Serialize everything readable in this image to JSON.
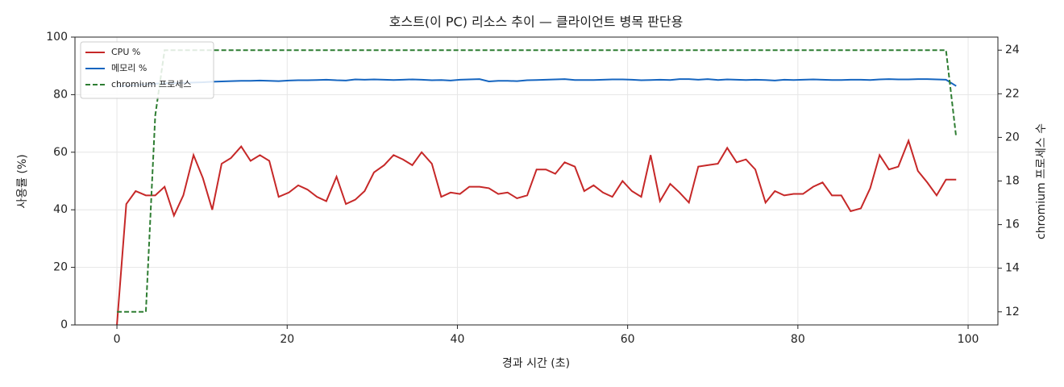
{
  "chart_data": {
    "type": "line",
    "title": "호스트(이 PC) 리소스 추이 — 클라이언트 병목 판단용",
    "x_label": "경과 시간 (초)",
    "y_label": "사용률 (%)",
    "y2_label": "chromium 프로세스 수",
    "x": [
      0,
      1.1,
      2.2,
      3.4,
      4.5,
      5.6,
      6.7,
      7.8,
      9.0,
      10.1,
      11.2,
      12.3,
      13.4,
      14.6,
      15.7,
      16.8,
      17.9,
      19.0,
      20.2,
      21.3,
      22.4,
      23.5,
      24.6,
      25.8,
      26.9,
      28.0,
      29.1,
      30.2,
      31.4,
      32.5,
      33.6,
      34.7,
      35.8,
      37.0,
      38.1,
      39.2,
      40.3,
      41.4,
      42.6,
      43.7,
      44.8,
      45.9,
      47.0,
      48.2,
      49.3,
      50.4,
      51.5,
      52.6,
      53.8,
      54.9,
      56.0,
      57.1,
      58.2,
      59.4,
      60.5,
      61.6,
      62.7,
      63.8,
      65.0,
      66.1,
      67.2,
      68.3,
      69.4,
      70.6,
      71.7,
      72.8,
      73.9,
      75.0,
      76.2,
      77.3,
      78.4,
      79.5,
      80.6,
      81.8,
      82.9,
      84.0,
      85.1,
      86.2,
      87.4,
      88.5,
      89.6,
      90.7,
      91.8,
      93.0,
      94.1,
      95.2,
      96.3,
      97.4,
      98.6
    ],
    "series": [
      {
        "name": "CPU %",
        "color": "#c62828",
        "dash": false,
        "values": [
          0,
          42,
          46.5,
          45,
          45,
          48,
          38,
          45,
          59,
          51,
          40,
          56,
          58,
          62,
          57,
          59,
          57,
          44.5,
          46,
          48.5,
          47,
          44.5,
          43,
          51.5,
          42,
          43.5,
          46.5,
          53,
          55.5,
          59,
          57.5,
          55.5,
          60,
          56,
          44.5,
          46,
          45.5,
          48,
          48,
          47.5,
          45.5,
          46,
          44,
          45,
          54,
          54,
          52.5,
          56.5,
          55,
          46.5,
          48.5,
          46,
          44.5,
          50,
          46.5,
          44.5,
          59,
          43,
          49,
          46,
          42.5,
          55,
          55.5,
          56,
          61.5,
          56.5,
          57.5,
          54,
          42.5,
          46.5,
          45,
          45.5,
          45.5,
          48,
          49.5,
          45,
          45,
          39.5,
          40.5,
          47.5,
          59,
          54,
          55,
          64,
          53.5,
          49.5,
          45,
          50.5,
          50.5
        ]
      },
      {
        "name": "메모리 %",
        "color": "#1565c0",
        "dash": false,
        "values": [
          83,
          83.1,
          83.3,
          83.6,
          83.8,
          84,
          84,
          84.1,
          84.2,
          84.3,
          84.5,
          84.6,
          84.7,
          84.8,
          84.8,
          84.9,
          84.8,
          84.7,
          84.9,
          85,
          85,
          85.1,
          85.2,
          85,
          84.9,
          85.3,
          85.2,
          85.3,
          85.2,
          85.1,
          85.2,
          85.3,
          85.2,
          85,
          85.1,
          84.9,
          85.2,
          85.3,
          85.4,
          84.6,
          84.8,
          84.8,
          84.7,
          85,
          85.1,
          85.2,
          85.3,
          85.4,
          85.1,
          85.1,
          85.1,
          85.2,
          85.3,
          85.3,
          85.2,
          85,
          85.1,
          85.2,
          85.1,
          85.4,
          85.4,
          85.2,
          85.4,
          85.1,
          85.3,
          85.2,
          85.1,
          85.2,
          85.1,
          84.9,
          85.2,
          85.1,
          85.2,
          85.3,
          85.2,
          85.1,
          85.1,
          85.2,
          85.2,
          85.1,
          85.3,
          85.4,
          85.3,
          85.3,
          85.4,
          85.4,
          85.3,
          85.2,
          83
        ]
      },
      {
        "name": "chromium 프로세스",
        "color": "#2e7d32",
        "dash": true,
        "axis": "y2",
        "values": [
          12,
          12,
          12,
          12,
          21,
          24,
          24,
          24,
          24,
          24,
          24,
          24,
          24,
          24,
          24,
          24,
          24,
          24,
          24,
          24,
          24,
          24,
          24,
          24,
          24,
          24,
          24,
          24,
          24,
          24,
          24,
          24,
          24,
          24,
          24,
          24,
          24,
          24,
          24,
          24,
          24,
          24,
          24,
          24,
          24,
          24,
          24,
          24,
          24,
          24,
          24,
          24,
          24,
          24,
          24,
          24,
          24,
          24,
          24,
          24,
          24,
          24,
          24,
          24,
          24,
          24,
          24,
          24,
          24,
          24,
          24,
          24,
          24,
          24,
          24,
          24,
          24,
          24,
          24,
          24,
          24,
          24,
          24,
          24,
          24,
          24,
          24,
          24,
          20
        ]
      }
    ],
    "xlim": [
      -4.93,
      103.5
    ],
    "xticks": [
      0,
      20,
      40,
      60,
      80,
      100
    ],
    "ylim": [
      0,
      100
    ],
    "yticks": [
      0,
      20,
      40,
      60,
      80,
      100
    ],
    "y2lim": [
      11.4,
      24.6
    ],
    "y2ticks": [
      12,
      14,
      16,
      18,
      20,
      22,
      24
    ],
    "grid": true,
    "legend": "upper left"
  }
}
